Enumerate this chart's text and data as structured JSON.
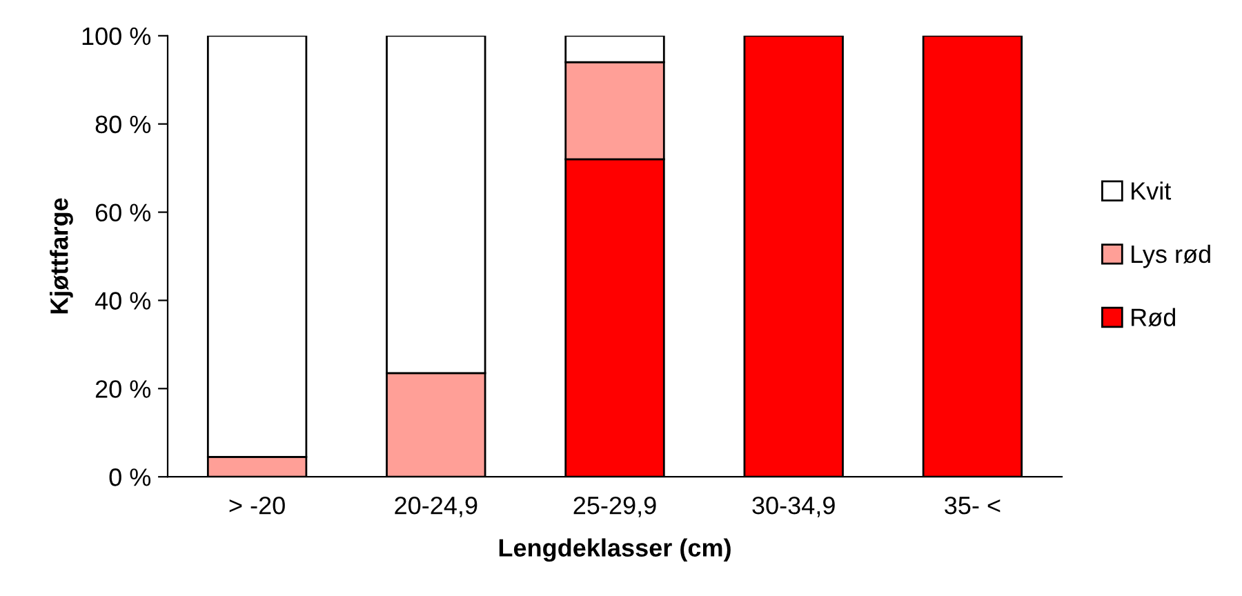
{
  "chart_data": {
    "type": "bar",
    "stacked": true,
    "xlabel": "Lengdeklasser (cm)",
    "ylabel": "Kjøttfarge",
    "categories": [
      "> -20",
      "20-24,9",
      "25-29,9",
      "30-34,9",
      "35- <"
    ],
    "series": [
      {
        "name": "Rød",
        "color": "#ff0000",
        "values": [
          null,
          null,
          72,
          100,
          100
        ]
      },
      {
        "name": "Lys rød",
        "color": "#ff9f97",
        "values": [
          4.5,
          23.5,
          22,
          null,
          null
        ]
      },
      {
        "name": "Kvit",
        "color": "#ffffff",
        "values": [
          95.5,
          76.5,
          6,
          null,
          null
        ]
      }
    ],
    "ylim": [
      0,
      100
    ],
    "yticks": [
      {
        "value": 0,
        "label": "0 %"
      },
      {
        "value": 20,
        "label": "20 %"
      },
      {
        "value": 40,
        "label": "40 %"
      },
      {
        "value": 60,
        "label": "60 %"
      },
      {
        "value": 80,
        "label": "80 %"
      },
      {
        "value": 100,
        "label": "100 %"
      }
    ],
    "grid": false,
    "legend": "right"
  }
}
